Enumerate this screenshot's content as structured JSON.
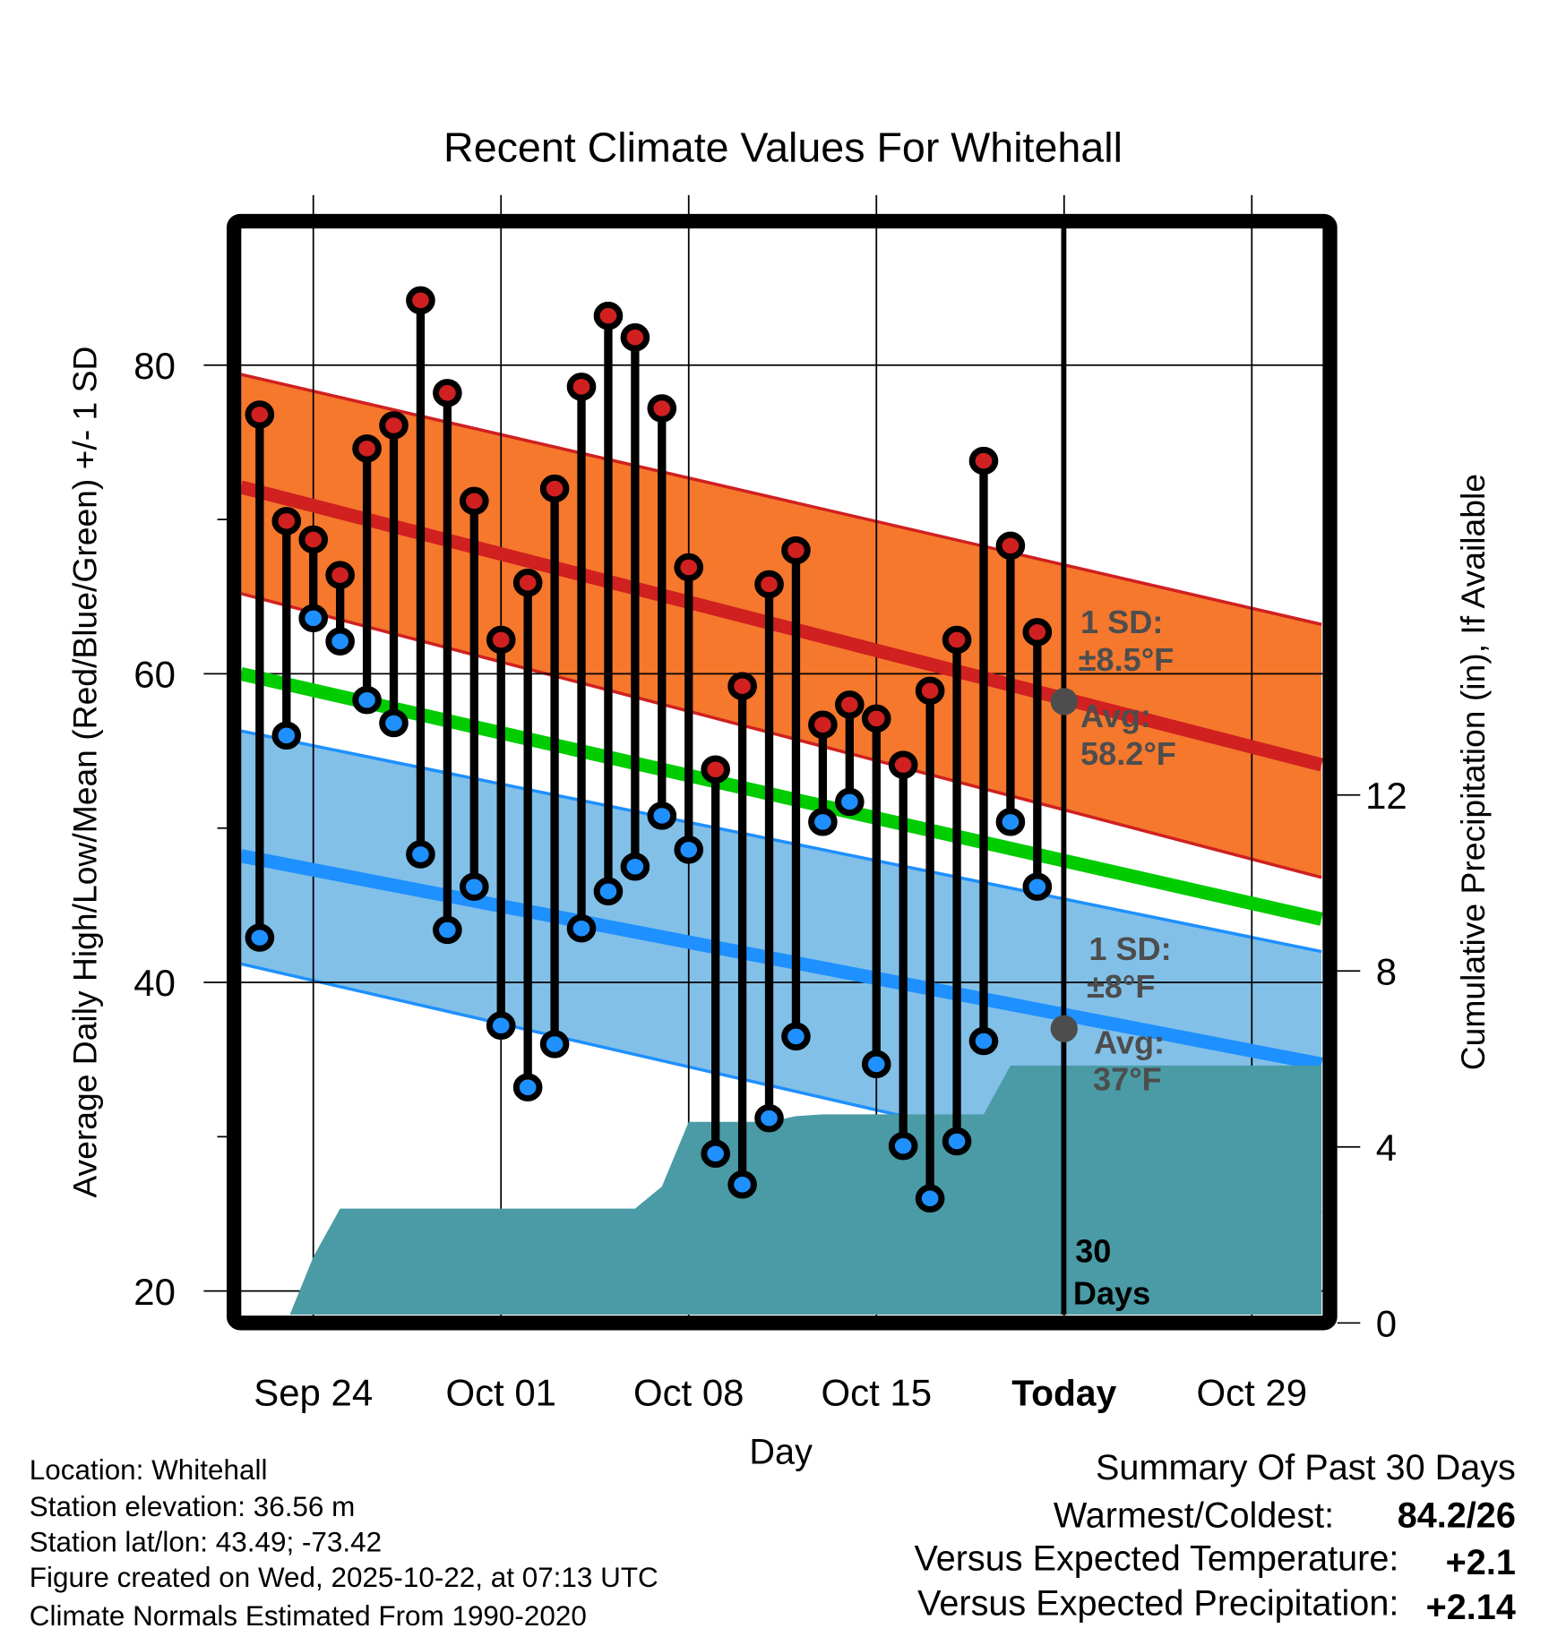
{
  "chart_data": {
    "type": "line",
    "title": "Recent Climate Values For Whitehall",
    "xlabel": "Day",
    "ylabel": "Average Daily High/Low/Mean (Red/Blue/Green) +/- 1 SD",
    "ylabel_right": "Cumulative Precipitation (in), If Available",
    "ylim": [
      18.8,
      89.6
    ],
    "ylim_right": [
      0,
      24.8
    ],
    "xlim_days_from_sep24": [
      -2.7,
      37.6
    ],
    "x_ticks": [
      {
        "label": "Sep 24",
        "day": 0
      },
      {
        "label": "Oct 01",
        "day": 7
      },
      {
        "label": "Oct 08",
        "day": 14
      },
      {
        "label": "Oct 15",
        "day": 21
      },
      {
        "label": "Today",
        "day": 28
      },
      {
        "label": "Oct 29",
        "day": 35
      }
    ],
    "y_ticks": [
      80,
      60,
      40,
      20
    ],
    "y_minor_ticks": [
      70,
      50,
      30
    ],
    "y_ticks_right": [
      0,
      4,
      8,
      12
    ],
    "grid": true,
    "first_day_offset": -2,
    "dates": [
      "Sep 22",
      "Sep 23",
      "Sep 24",
      "Sep 25",
      "Sep 26",
      "Sep 27",
      "Sep 28",
      "Sep 29",
      "Sep 30",
      "Oct 01",
      "Oct 02",
      "Oct 03",
      "Oct 04",
      "Oct 05",
      "Oct 06",
      "Oct 07",
      "Oct 08",
      "Oct 09",
      "Oct 10",
      "Oct 11",
      "Oct 12",
      "Oct 13",
      "Oct 14",
      "Oct 15",
      "Oct 16",
      "Oct 17",
      "Oct 18",
      "Oct 19",
      "Oct 20",
      "Oct 21"
    ],
    "series": [
      {
        "name": "Daily High",
        "color": "#d02020",
        "values": [
          76.8,
          69.9,
          68.7,
          66.4,
          74.6,
          76.1,
          84.2,
          78.2,
          71.2,
          62.2,
          65.9,
          72.0,
          78.6,
          83.2,
          81.8,
          77.2,
          66.9,
          53.8,
          59.2,
          65.8,
          68.0,
          56.7,
          58.0,
          57.1,
          54.1,
          58.9,
          62.2,
          73.8,
          68.3,
          62.7
        ]
      },
      {
        "name": "Daily Low",
        "color": "#1e90ff",
        "values": [
          42.9,
          56.0,
          63.6,
          62.1,
          58.3,
          56.8,
          48.3,
          43.4,
          46.2,
          37.2,
          33.2,
          36.0,
          43.5,
          45.9,
          47.5,
          50.8,
          48.6,
          28.9,
          26.9,
          31.2,
          36.5,
          50.4,
          51.7,
          34.7,
          29.4,
          26.0,
          29.7,
          36.2,
          50.4,
          46.2
        ]
      },
      {
        "name": "Cumulative Precipitation (in)",
        "color": "#4a9ba5",
        "values": [
          0,
          0,
          1.5,
          2.6,
          2.6,
          2.6,
          2.6,
          2.6,
          2.6,
          2.6,
          2.6,
          2.6,
          2.6,
          2.6,
          2.6,
          3.1,
          4.57,
          4.57,
          4.57,
          4.57,
          4.7,
          4.74,
          4.74,
          4.74,
          4.74,
          4.74,
          4.74,
          4.74,
          5.85,
          5.85
        ]
      }
    ],
    "normals": {
      "high_mean": [
        72.1,
        54.1
      ],
      "high_sd_upper": [
        79.4,
        63.2
      ],
      "high_sd_lower": [
        65.2,
        46.8
      ],
      "mean": [
        60.0,
        44.1
      ],
      "low_mean": [
        48.2,
        34.7
      ],
      "low_sd_upper": [
        56.3,
        42.0
      ],
      "low_sd_lower": [
        41.2,
        25.1
      ]
    },
    "today_avg_high": 58.2,
    "today_avg_low": 37,
    "annotations": {
      "high_sd_line1": "1 SD:",
      "high_sd_line2": "±8.5°F",
      "high_avg_line1": "Avg:",
      "high_avg_line2": "58.2°F",
      "low_sd_line1": "1 SD:",
      "low_sd_line2": "±8°F",
      "low_avg_line1": "Avg:",
      "low_avg_line2": "37°F",
      "days_line1": "30",
      "days_line2": "Days"
    },
    "colors": {
      "high_band": "#f5782d",
      "high_line": "#d02020",
      "mean_line": "#00cc00",
      "low_band": "#82c0e8",
      "low_line": "#1e90ff",
      "precip": "#4a9ba5",
      "avg_marker": "#4d4d4d"
    }
  },
  "footer": {
    "location": "Location: Whitehall",
    "elevation": "Station elevation: 36.56 m",
    "latlon": "Station lat/lon: 43.49; -73.42",
    "created": "Figure created on Wed, 2025-10-22, at 07:13 UTC",
    "normals": "Climate Normals Estimated From 1990-2020"
  },
  "summary": {
    "title": "Summary Of Past 30 Days",
    "warmest_coldest_label": "Warmest/Coldest:",
    "warmest_coldest_value": "84.2/26",
    "temp_label": "Versus Expected Temperature:",
    "temp_value": "+2.1",
    "precip_label": "Versus Expected Precipitation:",
    "precip_value": "+2.14",
    "temp_color": "#d02020",
    "precip_color": "#10c010"
  }
}
